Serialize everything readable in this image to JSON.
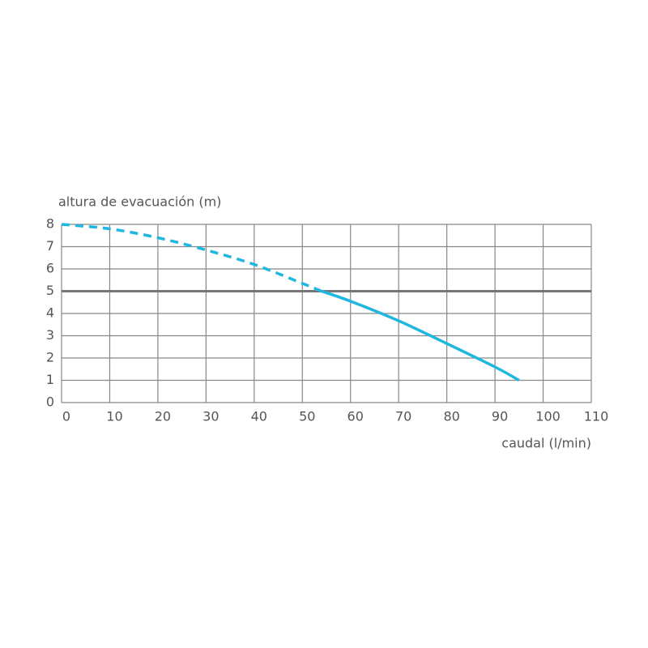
{
  "chart_data": {
    "type": "line",
    "y_label": "altura de evacuación (m)",
    "x_label": "caudal (l/min)",
    "x": [
      0,
      10,
      20,
      30,
      40,
      50,
      54,
      60,
      70,
      80,
      90,
      95
    ],
    "series": [
      {
        "color": "#1fb7e0",
        "line_style": "dashed",
        "values": [
          8,
          7.8,
          7.4,
          6.85,
          6.2,
          5.35,
          5.0,
          null,
          null,
          null,
          null,
          null
        ]
      },
      {
        "color": "#1fb7e0",
        "line_style": "solid",
        "values": [
          null,
          null,
          null,
          null,
          null,
          null,
          5.0,
          4.55,
          3.67,
          2.65,
          1.6,
          1.0
        ]
      }
    ],
    "xlim": [
      0,
      110
    ],
    "xticks": [
      0,
      10,
      20,
      30,
      40,
      50,
      60,
      70,
      80,
      90,
      100,
      110
    ],
    "ylim": [
      0,
      8
    ],
    "yticks": [
      0,
      1,
      2,
      3,
      4,
      5,
      6,
      7,
      8
    ],
    "grid": true,
    "hline": 5
  }
}
